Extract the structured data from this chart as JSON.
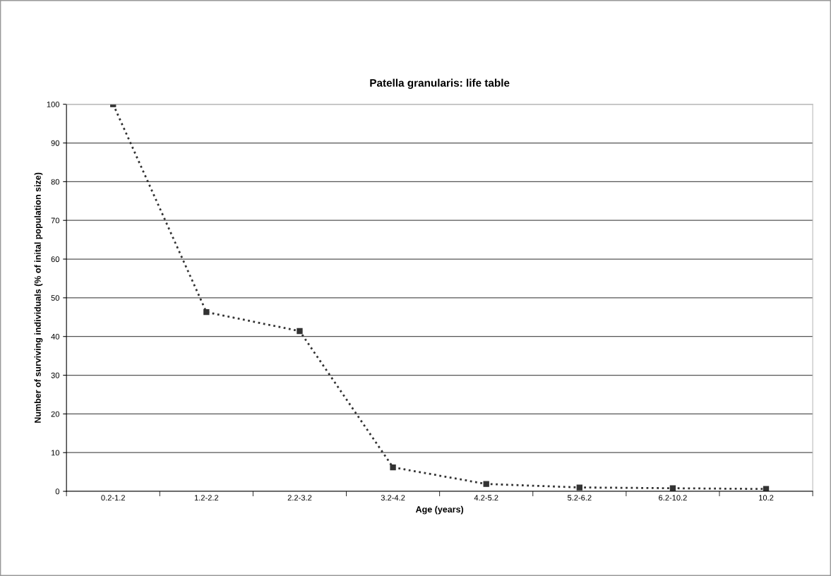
{
  "chart_data": {
    "type": "line",
    "title": "Patella granularis: life table",
    "xlabel": "Age (years)",
    "ylabel": "Number of surviving individuals (% of inital population size)",
    "categories": [
      "0.2-1.2",
      "1.2-2.2",
      "2.2-3.2",
      "3.2-4.2",
      "4.2-5.2",
      "5.2-6.2",
      "6.2-10.2",
      "10.2"
    ],
    "series": [
      {
        "color": "#333333",
        "values": [
          100,
          46.3,
          41.4,
          6.2,
          1.9,
          1.0,
          0.8,
          0.6
        ]
      }
    ],
    "ylim": [
      0,
      100
    ],
    "yticks": [
      0,
      10,
      20,
      30,
      40,
      50,
      60,
      70,
      80,
      90,
      100
    ],
    "grid": "y",
    "marker": "square",
    "line_style": "dotted"
  }
}
